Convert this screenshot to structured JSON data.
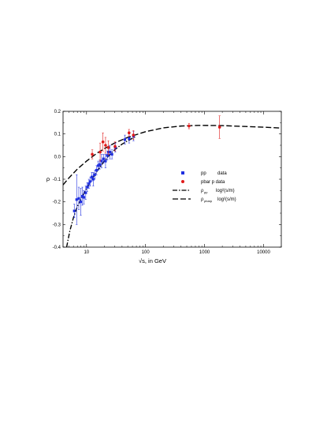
{
  "chart_data": {
    "type": "scatter",
    "x_scale": "log",
    "xlabel": "√s, in GeV",
    "ylabel": "ρ",
    "xlim": [
      4,
      20000
    ],
    "ylim": [
      -0.4,
      0.2
    ],
    "x_ticks": [
      10,
      100,
      1000,
      10000
    ],
    "x_tick_labels": [
      "10",
      "100",
      "1000",
      "10000"
    ],
    "y_ticks": [
      -0.4,
      -0.3,
      -0.2,
      -0.1,
      0.0,
      0.1,
      0.2
    ],
    "y_tick_labels": [
      "-0.4",
      "-0.3",
      "-0.2",
      "-0.1",
      "0.0",
      "0.1",
      "0.2"
    ],
    "grid": false,
    "legend_position": "center-right",
    "series": [
      {
        "name": "pp data",
        "kind": "points",
        "color": "#1f2fe0",
        "points": [
          {
            "x": 6.2,
            "y": -0.24,
            "err": 0.03
          },
          {
            "x": 6.8,
            "y": -0.19,
            "err": 0.11
          },
          {
            "x": 7.4,
            "y": -0.185,
            "err": 0.05
          },
          {
            "x": 8.0,
            "y": -0.2,
            "err": 0.06
          },
          {
            "x": 8.5,
            "y": -0.175,
            "err": 0.04
          },
          {
            "x": 9.0,
            "y": -0.18,
            "err": 0.03
          },
          {
            "x": 9.7,
            "y": -0.16,
            "err": 0.03
          },
          {
            "x": 10.3,
            "y": -0.135,
            "err": 0.02
          },
          {
            "x": 11.0,
            "y": -0.12,
            "err": 0.02
          },
          {
            "x": 11.5,
            "y": -0.11,
            "err": 0.02
          },
          {
            "x": 12.3,
            "y": -0.09,
            "err": 0.02
          },
          {
            "x": 13.0,
            "y": -0.1,
            "err": 0.03
          },
          {
            "x": 13.8,
            "y": -0.08,
            "err": 0.02
          },
          {
            "x": 14.8,
            "y": -0.06,
            "err": 0.02
          },
          {
            "x": 15.8,
            "y": -0.04,
            "err": 0.02
          },
          {
            "x": 16.8,
            "y": -0.035,
            "err": 0.02
          },
          {
            "x": 18.0,
            "y": -0.02,
            "err": 0.03
          },
          {
            "x": 19.4,
            "y": -0.01,
            "err": 0.02
          },
          {
            "x": 21.0,
            "y": -0.02,
            "err": 0.03
          },
          {
            "x": 22.5,
            "y": 0.005,
            "err": 0.02
          },
          {
            "x": 23.5,
            "y": 0.02,
            "err": 0.02
          },
          {
            "x": 25.0,
            "y": 0.02,
            "err": 0.03
          },
          {
            "x": 27.0,
            "y": 0.01,
            "err": 0.02
          },
          {
            "x": 30.7,
            "y": 0.04,
            "err": 0.02
          },
          {
            "x": 44.7,
            "y": 0.075,
            "err": 0.02
          },
          {
            "x": 52.8,
            "y": 0.08,
            "err": 0.02
          },
          {
            "x": 62.5,
            "y": 0.09,
            "err": 0.02
          }
        ]
      },
      {
        "name": "pbar p data",
        "kind": "points",
        "color": "#e01a1a",
        "points": [
          {
            "x": 12.5,
            "y": 0.01,
            "err": 0.02
          },
          {
            "x": 17.0,
            "y": 0.02,
            "err": 0.04
          },
          {
            "x": 19.0,
            "y": 0.065,
            "err": 0.04
          },
          {
            "x": 21.0,
            "y": 0.05,
            "err": 0.035
          },
          {
            "x": 23.5,
            "y": 0.04,
            "err": 0.03
          },
          {
            "x": 30.4,
            "y": 0.045,
            "err": 0.02
          },
          {
            "x": 52.6,
            "y": 0.105,
            "err": 0.015
          },
          {
            "x": 62.3,
            "y": 0.095,
            "err": 0.02
          },
          {
            "x": 546,
            "y": 0.135,
            "err": 0.012
          },
          {
            "x": 1800,
            "y": 0.13,
            "err": 0.05
          }
        ]
      },
      {
        "name": "ρpp log²(s/m)",
        "kind": "curve",
        "style": "dash-dot",
        "color": "#000000",
        "points": [
          {
            "x": 4.6,
            "y": -0.4
          },
          {
            "x": 5.2,
            "y": -0.33
          },
          {
            "x": 6.0,
            "y": -0.27
          },
          {
            "x": 7.0,
            "y": -0.22
          },
          {
            "x": 8.0,
            "y": -0.19
          },
          {
            "x": 10.0,
            "y": -0.14
          },
          {
            "x": 12.0,
            "y": -0.105
          },
          {
            "x": 15.0,
            "y": -0.065
          },
          {
            "x": 20.0,
            "y": -0.02
          },
          {
            "x": 25.0,
            "y": 0.01
          },
          {
            "x": 30.0,
            "y": 0.03
          },
          {
            "x": 40.0,
            "y": 0.055
          },
          {
            "x": 50.0,
            "y": 0.07
          },
          {
            "x": 70.0,
            "y": 0.09
          }
        ]
      },
      {
        "name": "ρpbarp log²(s/m)",
        "kind": "curve",
        "style": "dash",
        "color": "#000000",
        "points": [
          {
            "x": 4.0,
            "y": -0.125
          },
          {
            "x": 5.0,
            "y": -0.095
          },
          {
            "x": 7.0,
            "y": -0.055
          },
          {
            "x": 10.0,
            "y": -0.02
          },
          {
            "x": 15.0,
            "y": 0.015
          },
          {
            "x": 20.0,
            "y": 0.035
          },
          {
            "x": 30.0,
            "y": 0.06
          },
          {
            "x": 50.0,
            "y": 0.085
          },
          {
            "x": 100.0,
            "y": 0.11
          },
          {
            "x": 200.0,
            "y": 0.127
          },
          {
            "x": 400.0,
            "y": 0.135
          },
          {
            "x": 800.0,
            "y": 0.138
          },
          {
            "x": 2000.0,
            "y": 0.137
          },
          {
            "x": 5000.0,
            "y": 0.133
          },
          {
            "x": 10000.0,
            "y": 0.13
          },
          {
            "x": 20000.0,
            "y": 0.126
          }
        ]
      }
    ],
    "legend": [
      {
        "marker": "square",
        "color": "#1f2fe0",
        "main": "pp",
        "extra": "data"
      },
      {
        "marker": "circle",
        "color": "#e01a1a",
        "main": "pbar p data",
        "extra": ""
      },
      {
        "marker": "line-dashdot",
        "color": "#000000",
        "main": "ρ",
        "sub": "pp",
        "extra": "log²(s/m)"
      },
      {
        "marker": "line-dash",
        "color": "#000000",
        "main": "ρ",
        "sub": "pbarp",
        "extra": "log²(s/m)"
      }
    ]
  }
}
